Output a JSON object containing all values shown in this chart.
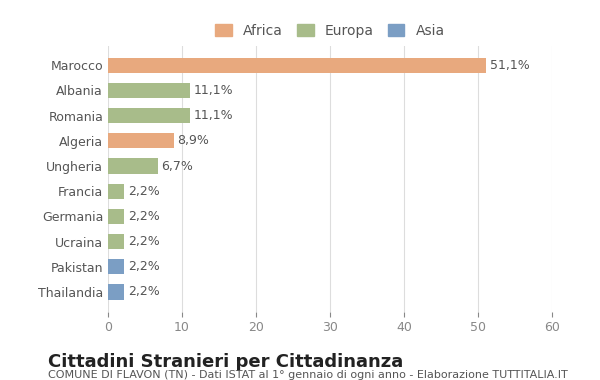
{
  "categories": [
    "Marocco",
    "Albania",
    "Romania",
    "Algeria",
    "Ungheria",
    "Francia",
    "Germania",
    "Ucraina",
    "Pakistan",
    "Thailandia"
  ],
  "values": [
    51.1,
    11.1,
    11.1,
    8.9,
    6.7,
    2.2,
    2.2,
    2.2,
    2.2,
    2.2
  ],
  "labels": [
    "51,1%",
    "11,1%",
    "11,1%",
    "8,9%",
    "6,7%",
    "2,2%",
    "2,2%",
    "2,2%",
    "2,2%",
    "2,2%"
  ],
  "colors": [
    "#E8A97E",
    "#A8BC8A",
    "#A8BC8A",
    "#E8A97E",
    "#A8BC8A",
    "#A8BC8A",
    "#A8BC8A",
    "#A8BC8A",
    "#7B9EC4",
    "#7B9EC4"
  ],
  "legend": [
    {
      "label": "Africa",
      "color": "#E8A97E"
    },
    {
      "label": "Europa",
      "color": "#A8BC8A"
    },
    {
      "label": "Asia",
      "color": "#7B9EC4"
    }
  ],
  "xlim": [
    0,
    60
  ],
  "xticks": [
    0,
    10,
    20,
    30,
    40,
    50,
    60
  ],
  "title": "Cittadini Stranieri per Cittadinanza",
  "subtitle": "COMUNE DI FLAVON (TN) - Dati ISTAT al 1° gennaio di ogni anno - Elaborazione TUTTITALIA.IT",
  "bg_color": "#FFFFFF",
  "grid_color": "#DDDDDD",
  "bar_height": 0.6,
  "title_fontsize": 13,
  "subtitle_fontsize": 8,
  "label_fontsize": 9,
  "tick_fontsize": 9,
  "legend_fontsize": 10
}
